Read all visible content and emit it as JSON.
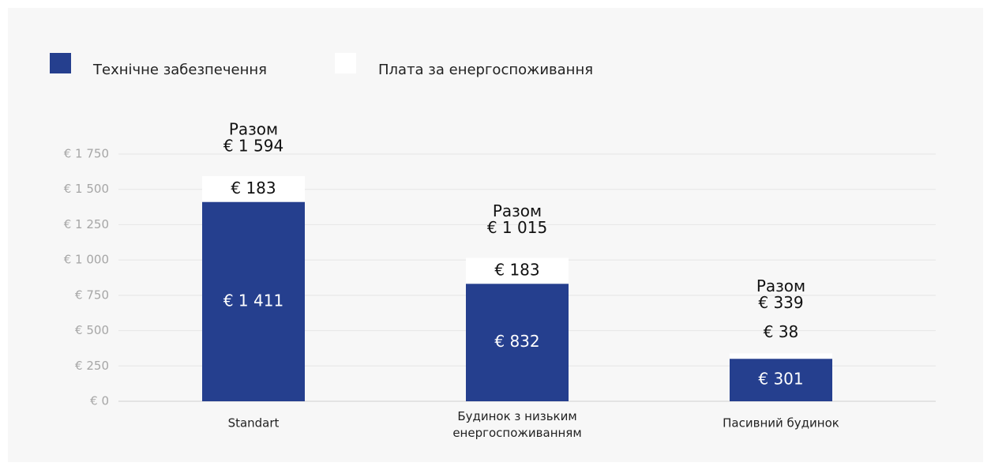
{
  "chart_data": {
    "type": "stacked_bar",
    "categories": [
      "Standart",
      "Будинок з низьким енергоспоживанням",
      "Пасивний будинок"
    ],
    "series": [
      {
        "name": "Технічне забезпечення",
        "color": "#253f8e",
        "values": [
          1411,
          832,
          301
        ],
        "value_labels": [
          "€ 1 411",
          "€ 832",
          "€ 301"
        ]
      },
      {
        "name": "Плата за енергоспоживання",
        "color": "#ffffff",
        "values": [
          183,
          183,
          38
        ],
        "value_labels": [
          "€ 183",
          "€ 183",
          "€ 38"
        ]
      }
    ],
    "totals": {
      "label": "Разом",
      "values": [
        1594,
        1015,
        339
      ],
      "value_labels": [
        "€ 1 594",
        "€ 1 015",
        "€ 339"
      ]
    },
    "ylim": [
      0,
      1750
    ],
    "yticks": [
      {
        "value": 0,
        "label": "€ 0"
      },
      {
        "value": 250,
        "label": "€ 250"
      },
      {
        "value": 500,
        "label": "€ 500"
      },
      {
        "value": 750,
        "label": "€ 750"
      },
      {
        "value": 1000,
        "label": "€ 1 000"
      },
      {
        "value": 1250,
        "label": "€ 1 250"
      },
      {
        "value": 1500,
        "label": "€ 1 500"
      },
      {
        "value": 1750,
        "label": "€ 1 750"
      }
    ],
    "grid": true,
    "legend": "top-left"
  }
}
